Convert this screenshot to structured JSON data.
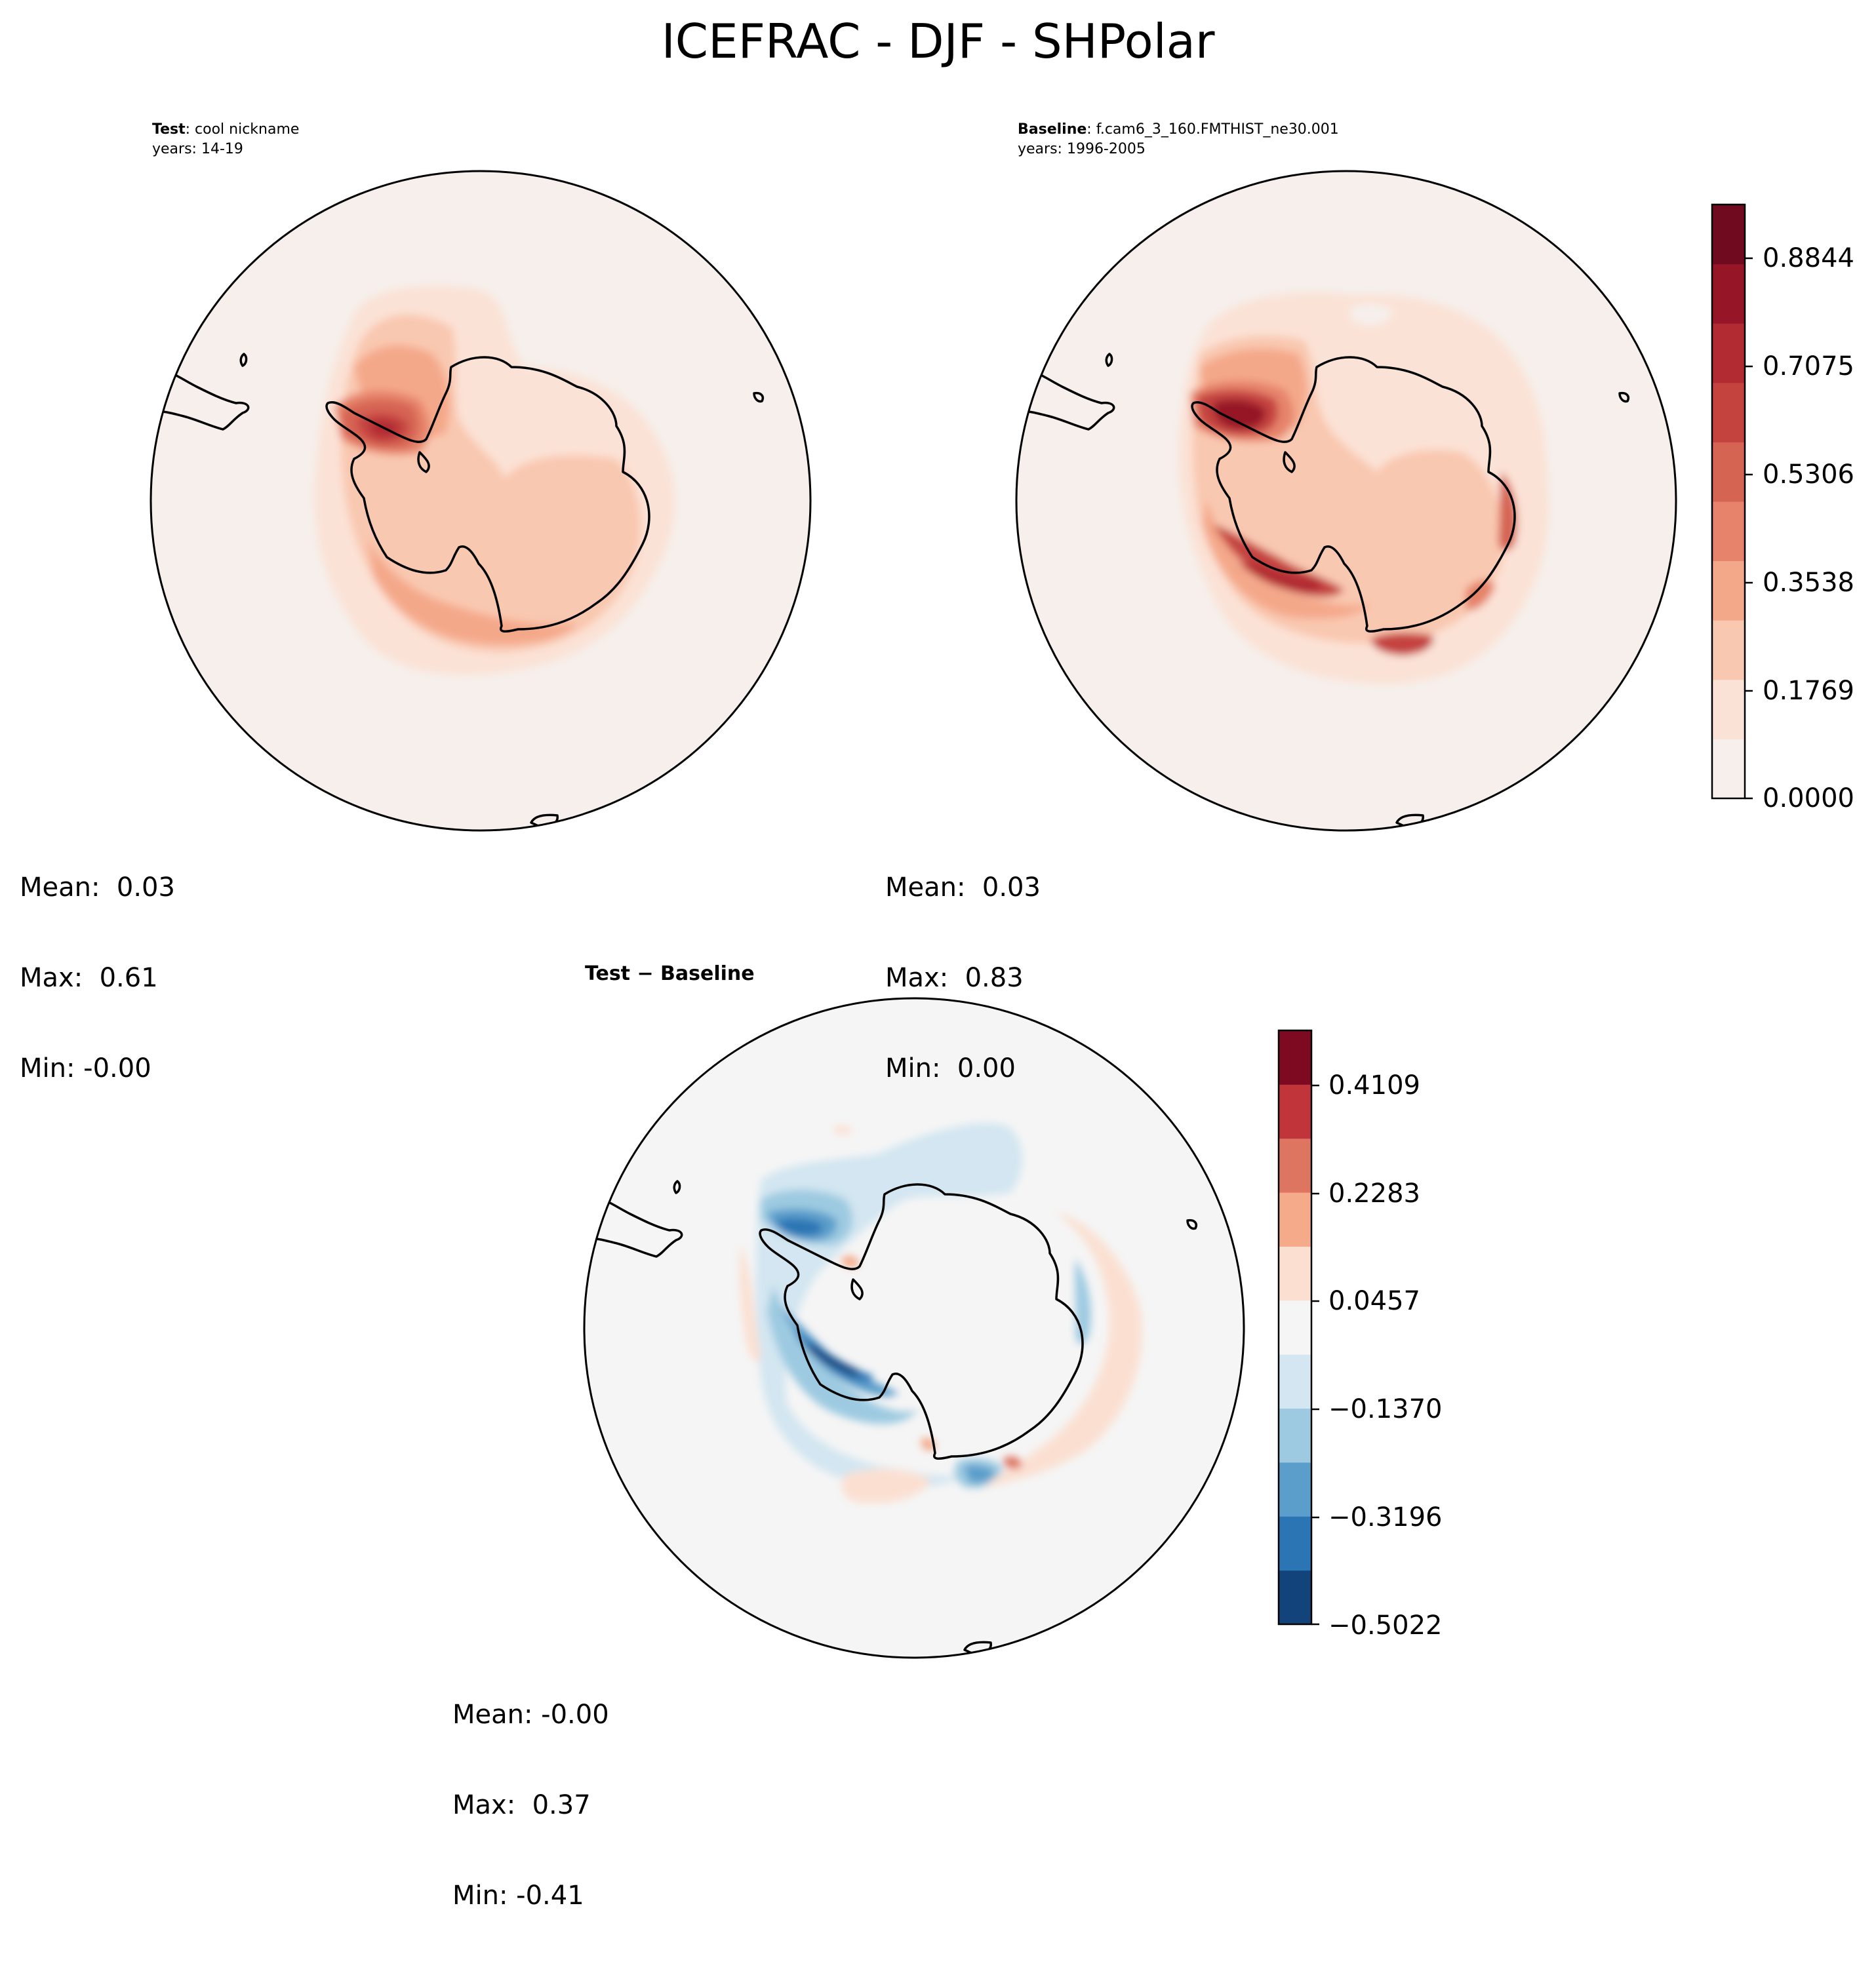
{
  "figure": {
    "title": "ICEFRAC - DJF - SHPolar"
  },
  "panels": {
    "test": {
      "label_bold": "Test",
      "label_rest": ": cool nickname",
      "years": "years: 14-19",
      "stats": {
        "mean": "Mean:  0.03",
        "max": "Max:  0.61",
        "min": "Min: -0.00"
      }
    },
    "baseline": {
      "label_bold": "Baseline",
      "label_rest": ": f.cam6_3_160.FMTHIST_ne30.001",
      "years": "years: 1996-2005",
      "stats": {
        "mean": "Mean:  0.03",
        "max": "Max:  0.83",
        "min": "Min:  0.00"
      }
    },
    "difference": {
      "title": "Test − Baseline",
      "stats": {
        "mean": "Mean: -0.00",
        "max": "Max:  0.37",
        "min": "Min: -0.41"
      }
    }
  },
  "colorbars": {
    "field": {
      "ticks": [
        "0.8844",
        "0.7075",
        "0.5306",
        "0.3538",
        "0.1769",
        "0.0000"
      ],
      "colors": [
        "#f6efeb",
        "#fbe2d6",
        "#f9c8b0",
        "#f4a88a",
        "#e6836a",
        "#d66452",
        "#c5433f",
        "#b22b33",
        "#961628",
        "#6f0a1f"
      ]
    },
    "difference": {
      "ticks": [
        "0.4109",
        "0.2283",
        "0.0457",
        "−0.1370",
        "−0.3196",
        "−0.5022"
      ],
      "colors": [
        "#13437b",
        "#2c75b4",
        "#5b9ecb",
        "#9dcae1",
        "#d3e6f1",
        "#f5f5f5",
        "#fbe0d2",
        "#f5aa8a",
        "#de7560",
        "#c0343a",
        "#7d0a21"
      ]
    }
  },
  "map_colors": {
    "ocean_field": "#f6efeb",
    "ocean_diff": "#f5f5f5",
    "coastline": "#000000"
  }
}
